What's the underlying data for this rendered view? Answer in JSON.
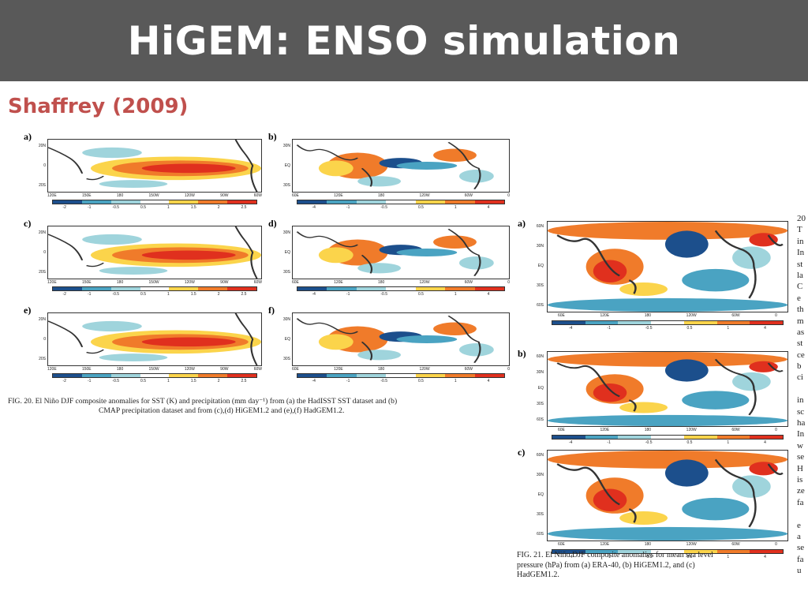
{
  "slide": {
    "title": "HiGEM: ENSO simulation",
    "subtitle": "Shaffrey (2009)"
  },
  "colors": {
    "title_bar": "#595959",
    "title_text": "#ffffff",
    "subtitle_text": "#c0504d",
    "warm_dark": "#e0301e",
    "warm": "#f07b2a",
    "warm_light": "#fbd44b",
    "cool_light": "#9fd4dc",
    "cool": "#4aa3c2",
    "cool_dark": "#1c4f8c"
  },
  "figure20": {
    "panels": [
      {
        "letter": "a)",
        "kind": "sst"
      },
      {
        "letter": "b)",
        "kind": "precip"
      },
      {
        "letter": "c)",
        "kind": "sst"
      },
      {
        "letter": "d)",
        "kind": "precip"
      },
      {
        "letter": "e)",
        "kind": "sst"
      },
      {
        "letter": "f)",
        "kind": "precip"
      }
    ],
    "sst_lon_ticks": [
      "120E",
      "150E",
      "180",
      "150W",
      "120W",
      "90W",
      "60W"
    ],
    "sst_lat_ticks": [
      "20N",
      "0",
      "20S"
    ],
    "precip_lon_ticks": [
      "60E",
      "120E",
      "180",
      "120W",
      "60W",
      "0"
    ],
    "precip_lat_ticks": [
      "30N",
      "EQ",
      "30S"
    ],
    "sst_colorbar_ticks": [
      "-2",
      "-1",
      "-0.5",
      "0.5",
      "1",
      "1.5",
      "2",
      "2.5"
    ],
    "precip_colorbar_ticks": [
      "-4",
      "-1",
      "-0.5",
      "0.5",
      "1",
      "4"
    ],
    "caption_line1": "FIG. 20. El Niño DJF composite anomalies for SST (K) and precipitation (mm day⁻¹) from (a) the HadISST SST dataset and (b)",
    "caption_line2": "CMAP precipitation dataset and from (c),(d) HiGEM1.2 and (e),(f) HadGEM1.2."
  },
  "figure21": {
    "panels": [
      {
        "letter": "a)"
      },
      {
        "letter": "b)"
      },
      {
        "letter": "c)"
      }
    ],
    "lon_ticks": [
      "60E",
      "120E",
      "180",
      "120W",
      "60W",
      "0"
    ],
    "lat_ticks": [
      "60N",
      "30N",
      "EQ",
      "30S",
      "60S"
    ],
    "colorbar_ticks": [
      "-4",
      "-1",
      "-0.5",
      "0.5",
      "1",
      "4"
    ],
    "caption_line1": "FIG. 21. El Niño DJF composite anomalies for mean sea level",
    "caption_line2": "pressure (hPa) from (a) ERA-40, (b) HiGEM1.2, and (c)",
    "caption_line3": "HadGEM1.2."
  },
  "side_text_fragments": [
    "20",
    "T",
    "in",
    "In",
    "st",
    "la",
    "C",
    "e",
    "th",
    "m",
    "as",
    "st",
    "ce",
    "b",
    "ci",
    "",
    "in",
    "sc",
    "ha",
    "In",
    "w",
    "se",
    "H",
    "is",
    "ze",
    "fa",
    "",
    "e",
    "a",
    "se",
    "fa",
    "u"
  ]
}
